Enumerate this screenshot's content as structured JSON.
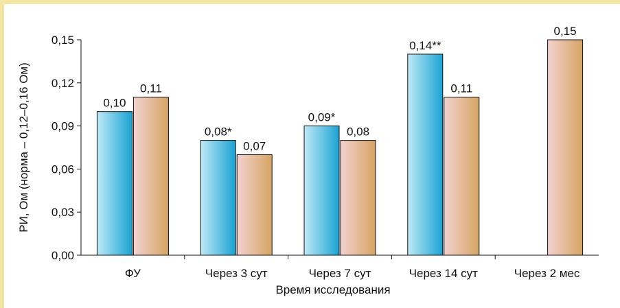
{
  "colors": {
    "border": "#f2e6a3",
    "axis": "#111111",
    "series1_light": "#bfe9f6",
    "series1_dark": "#1aa3d3",
    "series2_light": "#f2d2d0",
    "series2_dark": "#d7a462"
  },
  "chart_data": {
    "type": "bar",
    "title": "",
    "xlabel": "Время исследования",
    "ylabel": "РИ, Ом (норма – 0,12–0,16 Ом)",
    "ylim": [
      0,
      0.15
    ],
    "yticks": [
      "0,00",
      "0,03",
      "0,06",
      "0,09",
      "0,12",
      "0,15"
    ],
    "ytick_values": [
      0,
      0.03,
      0.06,
      0.09,
      0.12,
      0.15
    ],
    "categories": [
      "ФУ",
      "Через 3 сут",
      "Через 7 сут",
      "Через 14 сут",
      "Через 2 мес"
    ],
    "series": [
      {
        "values": [
          0.1,
          0.08,
          0.09,
          0.14,
          null
        ],
        "labels": [
          "0,10",
          "0,08*",
          "0,09*",
          "0,14**",
          ""
        ]
      },
      {
        "values": [
          0.11,
          0.07,
          0.08,
          0.11,
          0.15
        ],
        "labels": [
          "0,11",
          "0,07",
          "0,08",
          "0,11",
          "0,15"
        ]
      }
    ],
    "grid": false,
    "legend": "none"
  }
}
